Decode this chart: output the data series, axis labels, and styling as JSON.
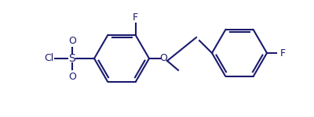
{
  "figsize": [
    4.0,
    1.5
  ],
  "dpi": 100,
  "bg": "#ffffff",
  "bond_color": "#1a1a6e",
  "lw": 1.5,
  "font_color": "#1a1a6e",
  "font_size": 9,
  "xlim": [
    0,
    400
  ],
  "ylim": [
    0,
    150
  ]
}
